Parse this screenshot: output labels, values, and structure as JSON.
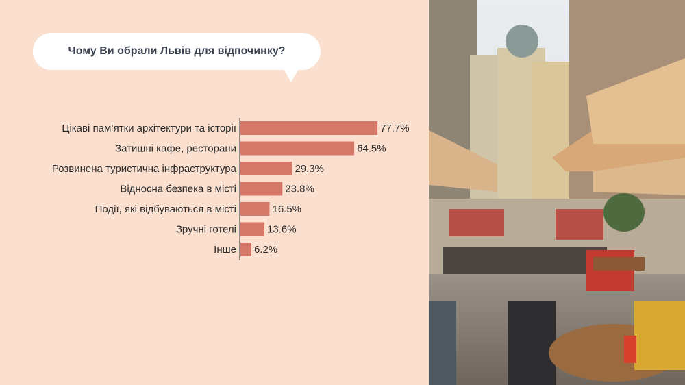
{
  "chart_data": {
    "type": "bar",
    "orientation": "horizontal",
    "title": "Чому Ви обрали Львів для відпочинку?",
    "categories": [
      "Цікаві пам’ятки архітектури та історії",
      "Затишні кафе, ресторани",
      "Розвинена туристична інфраструктура",
      "Відносна безпека в місті",
      "Події, які відбуваються в місті",
      "Зручні готелі",
      "Інше"
    ],
    "values": [
      77.7,
      64.5,
      29.3,
      23.8,
      16.5,
      13.6,
      6.2
    ],
    "value_labels": [
      "77.7%",
      "64.5%",
      "29.3%",
      "23.8%",
      "16.5%",
      "13.6%",
      "6.2%"
    ],
    "unit": "%",
    "xlim": [
      0,
      100
    ],
    "grid": false,
    "bar_color": "#d4786a",
    "background_color": "#fbe0d0"
  },
  "photo": {
    "description_icon": "lviv-street-cafe-photo"
  }
}
